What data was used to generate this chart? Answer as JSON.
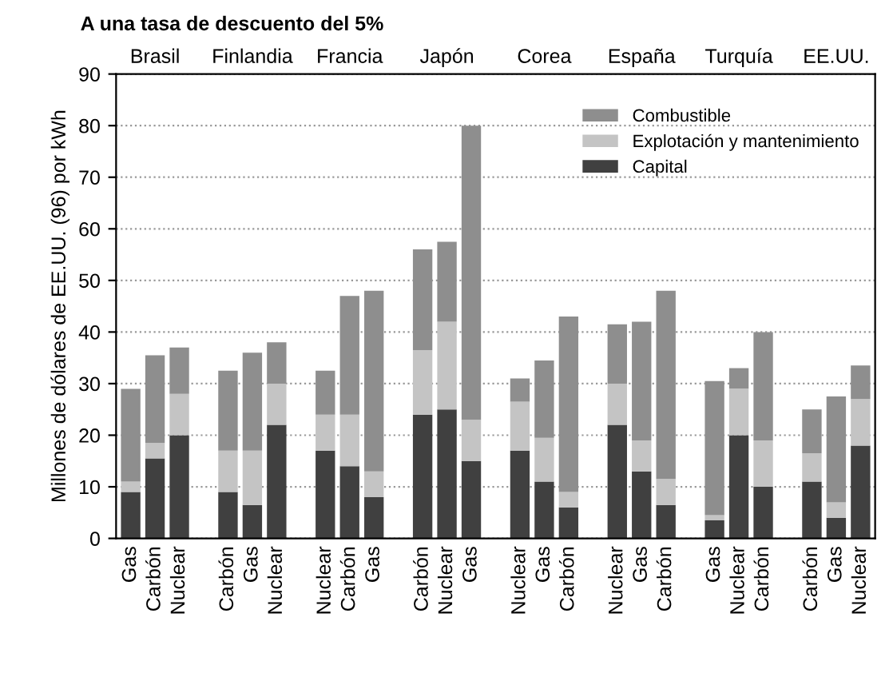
{
  "chart_data": {
    "type": "bar",
    "stacked": true,
    "title": "A una tasa de descuento del 5%",
    "ylabel": "Millones de dólares de EE.UU. (96) por kWh",
    "categories": [
      "Gas",
      "Carbón",
      "Nuclear",
      null,
      "Carbón",
      "Gas",
      "Nuclear",
      null,
      "Nuclear",
      "Carbón",
      "Gas",
      null,
      "Carbón",
      "Nuclear",
      "Gas",
      null,
      "Nuclear",
      "Gas",
      "Carbón",
      null,
      "Nuclear",
      "Gas",
      "Carbón",
      null,
      "Gas",
      "Nuclear",
      "Carbón",
      null,
      "Carbón",
      "Gas",
      "Nuclear"
    ],
    "series": [
      {
        "name": "Capital",
        "color": "#404040",
        "values": [
          9,
          15.5,
          20,
          null,
          9,
          6.5,
          22,
          null,
          17,
          14,
          8,
          null,
          24,
          25,
          15,
          null,
          17,
          11,
          6,
          null,
          22,
          13,
          6.5,
          null,
          3.5,
          20,
          10,
          null,
          11,
          4,
          18
        ]
      },
      {
        "name": "Explotación y mantenimiento",
        "color": "#c4c4c4",
        "values": [
          2,
          3,
          8,
          null,
          8,
          10.5,
          8,
          null,
          7,
          10,
          5,
          null,
          12.5,
          17,
          8,
          null,
          9.5,
          8.5,
          3,
          null,
          8,
          6,
          5,
          null,
          1,
          9,
          9,
          null,
          5.5,
          3,
          9
        ]
      },
      {
        "name": "Combustible",
        "color": "#8e8e8e",
        "values": [
          18,
          17,
          9,
          null,
          15.5,
          19,
          8,
          null,
          8.5,
          23,
          35,
          null,
          19.5,
          15.5,
          57,
          null,
          4.5,
          15,
          34,
          null,
          11.5,
          23,
          36.5,
          null,
          26,
          4,
          21,
          null,
          8.5,
          20.5,
          6.5
        ]
      }
    ],
    "annotations": [
      "Brasil",
      "Finlandia",
      "Francia",
      "Japón",
      "Corea",
      "España",
      "Turquía",
      "EE.UU."
    ],
    "ylim": [
      0,
      90
    ],
    "yticks": [
      0,
      10,
      20,
      30,
      40,
      50,
      60,
      70,
      80,
      90
    ],
    "grid": "y",
    "legend": "top right"
  }
}
